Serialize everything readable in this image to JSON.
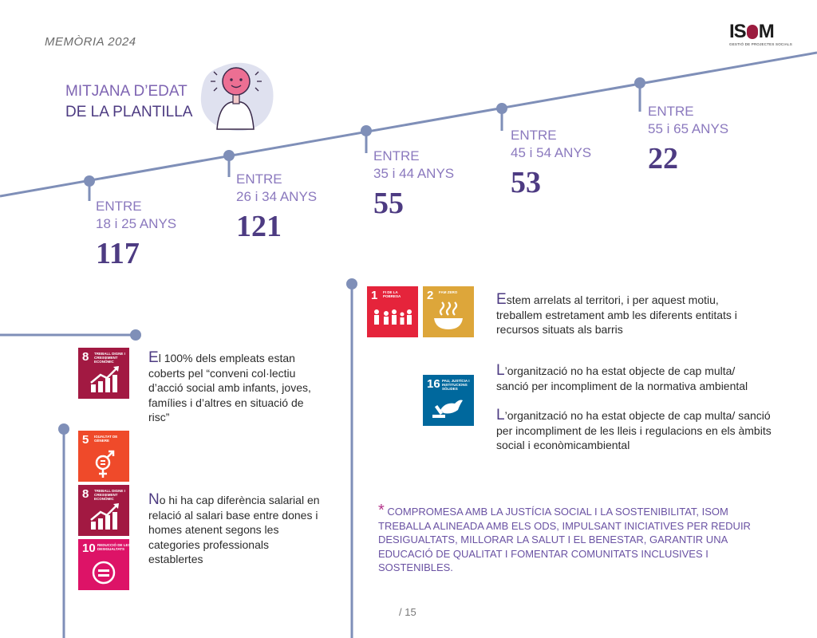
{
  "header": {
    "title": "MEMÒRIA 2024"
  },
  "logo": {
    "text_left": "IS",
    "text_right": "M",
    "tagline": "GESTIÓ DE PROJECTES SOCIALS"
  },
  "intro": {
    "line1": "MITJANA D’EDAT",
    "line2": "DE LA PLANTILLA"
  },
  "age_groups": [
    {
      "entre": "ENTRE",
      "range": "18 i 25 ANYS",
      "value": "117"
    },
    {
      "entre": "ENTRE",
      "range": "26 i 34 ANYS",
      "value": "121"
    },
    {
      "entre": "ENTRE",
      "range": "35 i 44 ANYS",
      "value": "55"
    },
    {
      "entre": "ENTRE",
      "range": "45 i 54 ANYS",
      "value": "53"
    },
    {
      "entre": "ENTRE",
      "range": "55 i 65 ANYS",
      "value": "22"
    }
  ],
  "sdg": {
    "goal1": {
      "num": "1",
      "label": "FI DE LA POBRESA",
      "color": "#e5243b"
    },
    "goal2": {
      "num": "2",
      "label": "FAM ZERO",
      "color": "#dda63a"
    },
    "goal5": {
      "num": "5",
      "label": "IGUALTAT DE GÈNERE",
      "color": "#ff3a21"
    },
    "goal8": {
      "num": "8",
      "label": "TREBALL DIGNE I CREIXEMENT ECONÒMIC",
      "color": "#a21942"
    },
    "goal10": {
      "num": "10",
      "label": "REDUCCIÓ DE LES DESIGUALTATS",
      "color": "#dd1367"
    },
    "goal16": {
      "num": "16",
      "label": "PAU, JUSTÍCIA I INSTITUCIONS SÒLIDES",
      "color": "#00689d"
    }
  },
  "texts": {
    "conveni": {
      "first": "E",
      "rest": "l 100% dels empleats estan coberts pel “conveni col·lectiu d’acció social amb infants, joves, famílies i d’altres en situació de risc”"
    },
    "salari": {
      "first": "N",
      "rest": "o hi ha cap diferència salarial en relació al salari base entre dones i homes atenent segons les categories professionals establertes"
    },
    "territori": {
      "first": "E",
      "rest": "stem arrelats al territori, i per aquest motiu, treballem estretament amb les diferents entitats i recursos situats als barris"
    },
    "multa_ambiental": {
      "first": "L",
      "rest": "’organització no ha estat objecte de cap multa/ sanció per incompliment de la normativa ambiental"
    },
    "multa_social": {
      "first": "L",
      "rest": "’organització no ha estat objecte de cap multa/ sanció per incompliment de les lleis i regulacions en els àmbits social i econòmicambiental"
    }
  },
  "footnote": {
    "star": "*",
    "text": "COMPROMESA AMB LA JUSTÍCIA SOCIAL I LA SOSTENIBILITAT, ISOM TREBALLA ALINEADA AMB ELS ODS, IMPULSANT INICIATIVES PER REDUIR DESIGUALTATS, MILLORAR LA SALUT I EL BENESTAR, GARANTIR UNA EDUCACIÓ DE QUALITAT I FOMENTAR COMUNITATS INCLUSIVES I SOSTENIBLES."
  },
  "page_number": "/ 15",
  "colors": {
    "line": "#7f8fb8",
    "accent": "#4d3b82"
  }
}
